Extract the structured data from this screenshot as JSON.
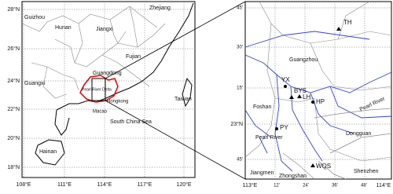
{
  "left_map": {
    "y_labels": [
      "28°N",
      "26°N",
      "24°N",
      "22°N",
      "20°N",
      "18°N"
    ],
    "x_labels": [
      "108°E",
      "111°E",
      "114°E",
      "117°E",
      "120°E"
    ],
    "place_labels": [
      "Guizhou",
      "Hunan",
      "Jiangxi",
      "Zhejiang",
      "Fujian",
      "Guangdong",
      "Guangxi",
      "Pearl River Delta",
      "Taiwan",
      "Hongkong",
      "Macao",
      "South China Sea",
      "Hainan"
    ]
  },
  "right_map": {
    "y_labels": [
      "45'",
      "30'",
      "15'",
      "23°N",
      "45'"
    ],
    "x_labels": [
      "113°E",
      "12'",
      "24'",
      "36'",
      "48'",
      "114°E"
    ],
    "place_labels": [
      "Guangzhou",
      "Foshan",
      "Pearl River",
      "Pearl River",
      "Dongguan",
      "Jiangmen",
      "Zhongshan",
      "Shenzhen"
    ],
    "stations": [
      "TH",
      "YX",
      "BYS",
      "LH",
      "HP",
      "PY",
      "WQS"
    ]
  }
}
